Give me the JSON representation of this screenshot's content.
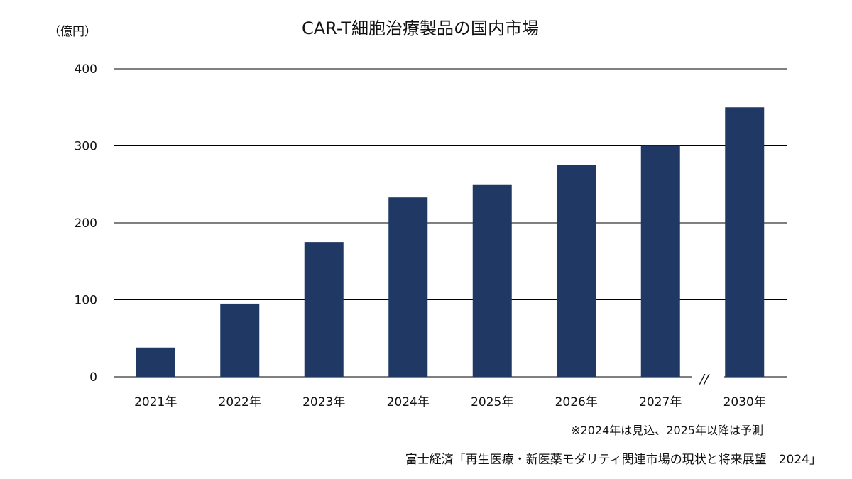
{
  "chart_data": {
    "type": "bar",
    "title": "CAR-T細胞治療製品の国内市場",
    "unit_label": "（億円）",
    "categories": [
      "2021年",
      "2022年",
      "2023年",
      "2024年",
      "2025年",
      "2026年",
      "2027年",
      "2030年"
    ],
    "values": [
      38,
      95,
      175,
      233,
      250,
      275,
      300,
      350
    ],
    "ylim": [
      0,
      400
    ],
    "yticks": [
      "0",
      "100",
      "200",
      "300",
      "400"
    ],
    "ytick_values": [
      0,
      100,
      200,
      300,
      400
    ],
    "grid": true,
    "bar_color": "#1F3864",
    "axis_break_mark": "//",
    "note": "※2024年は見込、2025年以降は予測",
    "source": "富士経済「再生医療・新医薬モダリティ関連市場の現状と将来展望　2024」"
  }
}
